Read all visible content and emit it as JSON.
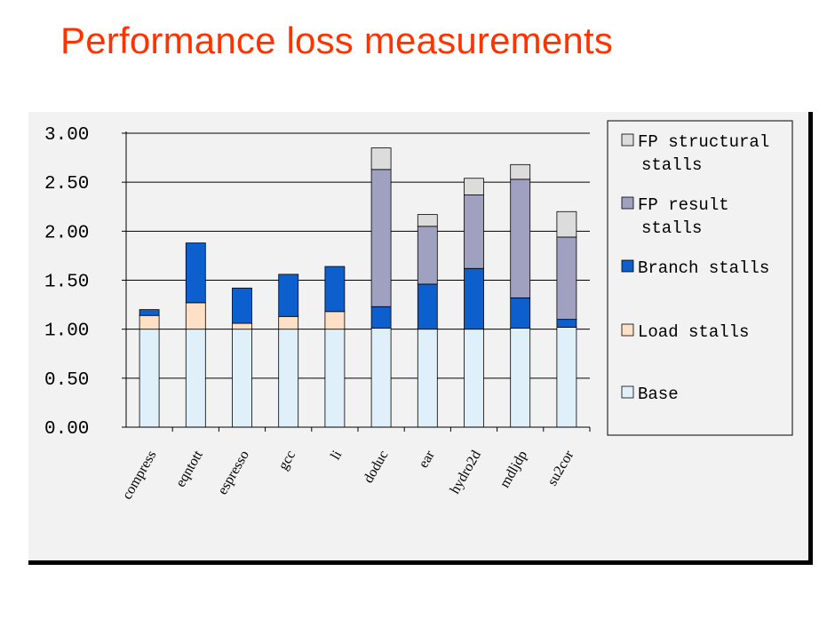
{
  "slide": {
    "title": "Performance loss measurements"
  },
  "chart_data": {
    "type": "bar",
    "stacked": true,
    "categories": [
      "compress",
      "eqntott",
      "espresso",
      "gcc",
      "li",
      "doduc",
      "ear",
      "hydro2d",
      "mdljdp",
      "su2cor"
    ],
    "series": [
      {
        "name": "Base",
        "color": "#dff0fb",
        "values": [
          1.0,
          1.0,
          1.0,
          1.0,
          1.0,
          1.01,
          1.0,
          1.0,
          1.01,
          1.02
        ]
      },
      {
        "name": "Load stalls",
        "color": "#fde0c5",
        "values": [
          0.14,
          0.27,
          0.06,
          0.13,
          0.18,
          0.0,
          0.0,
          0.0,
          0.0,
          0.0
        ]
      },
      {
        "name": "Branch stalls",
        "color": "#0c5fcc",
        "values": [
          0.06,
          0.61,
          0.36,
          0.43,
          0.46,
          0.22,
          0.46,
          0.62,
          0.31,
          0.08
        ]
      },
      {
        "name": "FP result stalls",
        "color": "#a0a0c0",
        "values": [
          0.0,
          0.0,
          0.0,
          0.0,
          0.0,
          1.4,
          0.59,
          0.75,
          1.21,
          0.84
        ]
      },
      {
        "name": "FP structural stalls",
        "color": "#dcdcdc",
        "values": [
          0.0,
          0.0,
          0.0,
          0.0,
          0.0,
          0.22,
          0.12,
          0.17,
          0.15,
          0.26
        ]
      }
    ],
    "y_ticks": [
      "0.00",
      "0.50",
      "1.00",
      "1.50",
      "2.00",
      "2.50",
      "3.00"
    ],
    "ylim": [
      0,
      3.0
    ],
    "grid": true,
    "legend": {
      "position": "right",
      "entries": [
        {
          "lines": [
            "FP structural",
            "stalls"
          ],
          "color": "#dcdcdc"
        },
        {
          "lines": [
            "FP result",
            "stalls"
          ],
          "color": "#a0a0c0"
        },
        {
          "lines": [
            "Branch stalls"
          ],
          "color": "#0c5fcc"
        },
        {
          "lines": [
            "Load stalls"
          ],
          "color": "#fde0c5"
        },
        {
          "lines": [
            "Base"
          ],
          "color": "#dff0fb"
        }
      ]
    }
  }
}
